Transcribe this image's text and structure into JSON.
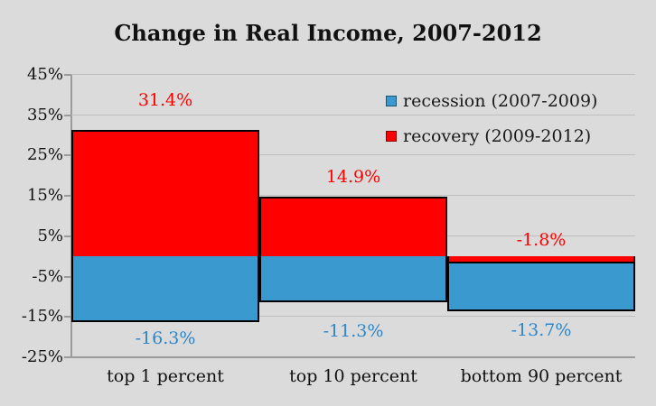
{
  "title": "Change in Real Income, 2007-2012",
  "colors": {
    "background": "#DBDBDB",
    "recession_blue": "#3A99CE",
    "recovery_red": "#FE0000",
    "blue_label_text": "#2E86C8",
    "red_label_text": "#FF0000",
    "gridline": "#BFBFBF",
    "axis_line": "#9B9B9B",
    "text": "#111111"
  },
  "legend": {
    "items": [
      {
        "label": "recession (2007-2009)",
        "color": "#3A99CE"
      },
      {
        "label": "recovery (2009-2012)",
        "color": "#FE0000"
      }
    ]
  },
  "y_axis": {
    "ticks": [
      45,
      35,
      25,
      15,
      5,
      -5,
      -15,
      -25
    ],
    "tick_labels": [
      "45%",
      "35%",
      "25%",
      "15%",
      "5%",
      "-5%",
      "-15%",
      "-25%"
    ]
  },
  "chart_data": {
    "type": "bar",
    "title": "Change in Real Income, 2007-2012",
    "categories": [
      "top 1 percent",
      "top 10 percent",
      "bottom 90 percent"
    ],
    "series": [
      {
        "name": "recession (2007-2009)",
        "color": "#3A99CE",
        "values": [
          -16.3,
          -11.3,
          -13.7
        ],
        "data_labels": [
          "-16.3%",
          "-11.3%",
          "-13.7%"
        ],
        "label_color": "#2E86C8"
      },
      {
        "name": "recovery (2009-2012)",
        "color": "#FE0000",
        "values": [
          31.4,
          14.9,
          -1.8
        ],
        "data_labels": [
          "31.4%",
          "14.9%",
          "-1.8%"
        ],
        "label_color": "#FF0000"
      }
    ],
    "ylim": [
      -25,
      45
    ],
    "grid": true,
    "legend_position": "inside-top-right",
    "bar_style": "full-width overlapped columns with black outline, recovery drawn over recession",
    "xlabel": "",
    "ylabel": ""
  }
}
